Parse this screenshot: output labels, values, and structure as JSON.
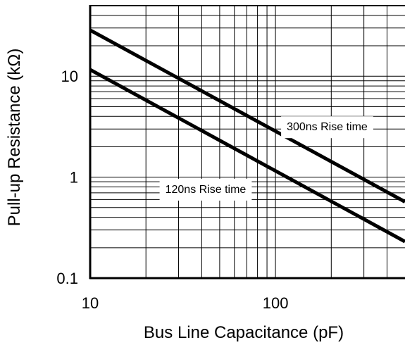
{
  "chart_data": {
    "type": "line",
    "title": "",
    "xlabel": "Bus Line Capacitance (pF)",
    "ylabel": "Pull-up Resistance (kΩ)",
    "x_scale": "log",
    "y_scale": "log",
    "xlim": [
      10,
      500
    ],
    "ylim": [
      0.1,
      50
    ],
    "grid": true,
    "x_ticks": [
      {
        "value": 10,
        "label": "10"
      },
      {
        "value": 100,
        "label": "100"
      }
    ],
    "y_ticks": [
      {
        "value": 0.1,
        "label": "0.1"
      },
      {
        "value": 1,
        "label": "1"
      },
      {
        "value": 10,
        "label": "10"
      }
    ],
    "series": [
      {
        "name": "300ns Rise time",
        "x": [
          10,
          500
        ],
        "y": [
          28.6,
          0.57
        ]
      },
      {
        "name": "120ns Rise time",
        "x": [
          10,
          500
        ],
        "y": [
          11.6,
          0.23
        ]
      }
    ],
    "annotations": [
      {
        "text": "300ns Rise time",
        "x": 190,
        "y": 3.2
      },
      {
        "text": "120ns Rise time",
        "x": 42,
        "y": 0.77
      }
    ],
    "colors": {
      "line": "#000000",
      "grid": "#000000",
      "background": "#ffffff"
    }
  }
}
